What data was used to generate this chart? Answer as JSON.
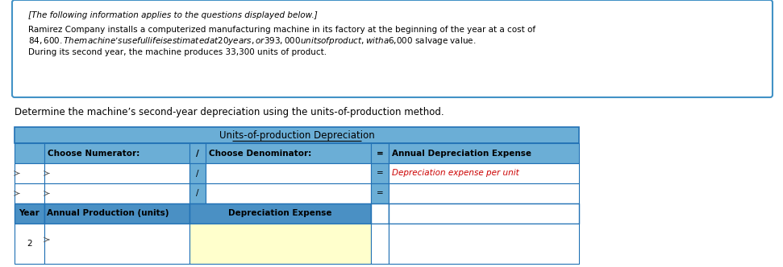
{
  "info_box_text_line1": "[The following information applies to the questions displayed below.]",
  "info_box_text_line2": "Ramirez Company installs a computerized manufacturing machine in its factory at the beginning of the year at a cost of\n$84,600. The machine’s useful life is estimated at 20 years, or 393,000 units of product, with a $6,000 salvage value.\nDuring its second year, the machine produces 33,300 units of product.",
  "question_text": "Determine the machine’s second-year depreciation using the units-of-production method.",
  "table_title": "Units-of-production Depreciation",
  "row1_col1": "Choose Numerator:",
  "row1_slash": "/",
  "row1_col3": "Choose Denominator:",
  "row1_equals": "=",
  "row1_col5": "Annual Depreciation Expense",
  "row2_slash": "/",
  "row2_equals": "=",
  "row2_col5": "Depreciation expense per unit",
  "row3_slash": "/",
  "row3_equals": "=",
  "row4_col1": "Year",
  "row4_col2": "Annual Production (units)",
  "row4_col3": "Depreciation Expense",
  "row5_col1": "2",
  "header_bg": "#6baed6",
  "header_dark_bg": "#4a90c4",
  "white_bg": "#ffffff",
  "yellow_bg": "#ffffcc",
  "red_text": "#cc0000",
  "border_color": "#2171b5",
  "info_border_color": "#4292c6",
  "info_bg": "#ffffff",
  "col_dividers": [
    18,
    55,
    235,
    255,
    460,
    482,
    718
  ],
  "rows_img": [
    158,
    178,
    203,
    228,
    253,
    278,
    328
  ]
}
